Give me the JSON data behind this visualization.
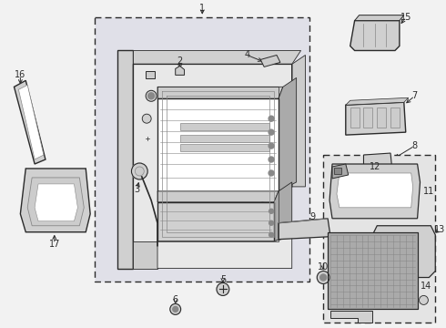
{
  "bg_color": "#f2f2f2",
  "line_color": "#2a2a2a",
  "mid_gray": "#888888",
  "light_gray": "#d0d0d0",
  "fill_panel": "#e8e8e8",
  "fill_inner": "#cccccc",
  "fill_dark": "#aaaaaa",
  "white": "#ffffff",
  "dot_bg": "#e0e0e8"
}
